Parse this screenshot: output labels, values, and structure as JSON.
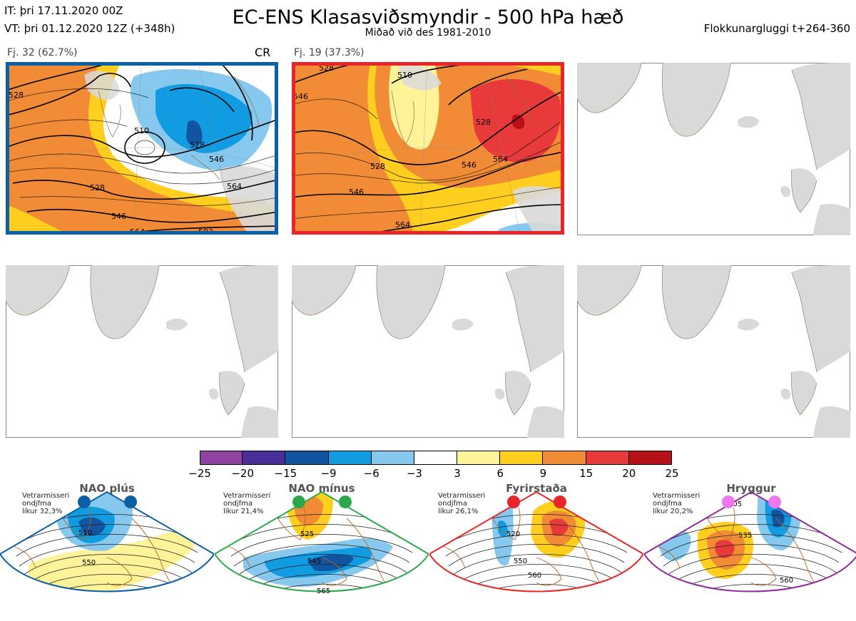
{
  "header": {
    "it_label": "IT: þri 17.11.2020 00Z",
    "vt_label": "VT: þri 01.12.2020 12Z  (+348h)",
    "title": "EC-ENS Klasasviðsmyndir - 500 hPa hæð",
    "subtitle": "Miðað við des 1981-2010",
    "window_label": "Flokkunargluggi t+264-360"
  },
  "panels": [
    {
      "label": "Fj. 32 (62.7%)",
      "tag": "CR",
      "border_color": "#0b5fa5",
      "contours": [
        "528",
        "510",
        "528",
        "546",
        "564",
        "528",
        "546",
        "564",
        "582"
      ]
    },
    {
      "label": "Fj. 19 (37.3%)",
      "tag": "",
      "border_color": "#e8262a",
      "contours": [
        "528",
        "510",
        "546",
        "528",
        "546",
        "564",
        "528",
        "564",
        "546"
      ]
    }
  ],
  "colorbar": {
    "colors": [
      "#8e44a0",
      "#4a2f9a",
      "#1155a0",
      "#119be0",
      "#86c8ee",
      "#ffffff",
      "#fff39a",
      "#ffce1f",
      "#f28b35",
      "#e83a3a",
      "#b41217"
    ],
    "labels": [
      "−25",
      "−20",
      "−15",
      "−9",
      "−6",
      "−3",
      "3",
      "6",
      "9",
      "15",
      "20",
      "25"
    ]
  },
  "regimes": [
    {
      "title": "NAO plús",
      "note_1": "Vetrarmisseri",
      "note_2": "ondjfma",
      "note_3": "líkur 32,3%",
      "color": "#0b5fa5",
      "dot_color": "#0b5fa5",
      "contours": [
        "510",
        "550"
      ]
    },
    {
      "title": "NAO mínus",
      "note_1": "Vetrarmisseri",
      "note_2": "ondjfma",
      "note_3": "líkur 21,4%",
      "color": "#2ca84a",
      "dot_color": "#2ca84a",
      "contours": [
        "525",
        "545",
        "565"
      ]
    },
    {
      "title": "Fyrirstaða",
      "note_1": "Vetrarmisseri",
      "note_2": "ondjfma",
      "note_3": "líkur 26,1%",
      "color": "#e8262a",
      "dot_color": "#e8262a",
      "contours": [
        "520",
        "550",
        "560"
      ]
    },
    {
      "title": "Hryggur",
      "note_1": "Vetrarmisseri",
      "note_2": "ondjfma",
      "note_3": "líkur 20,2%",
      "color": "#8e2a9a",
      "dot_color": "#ee77ee",
      "contours": [
        "505",
        "535",
        "560"
      ]
    }
  ]
}
